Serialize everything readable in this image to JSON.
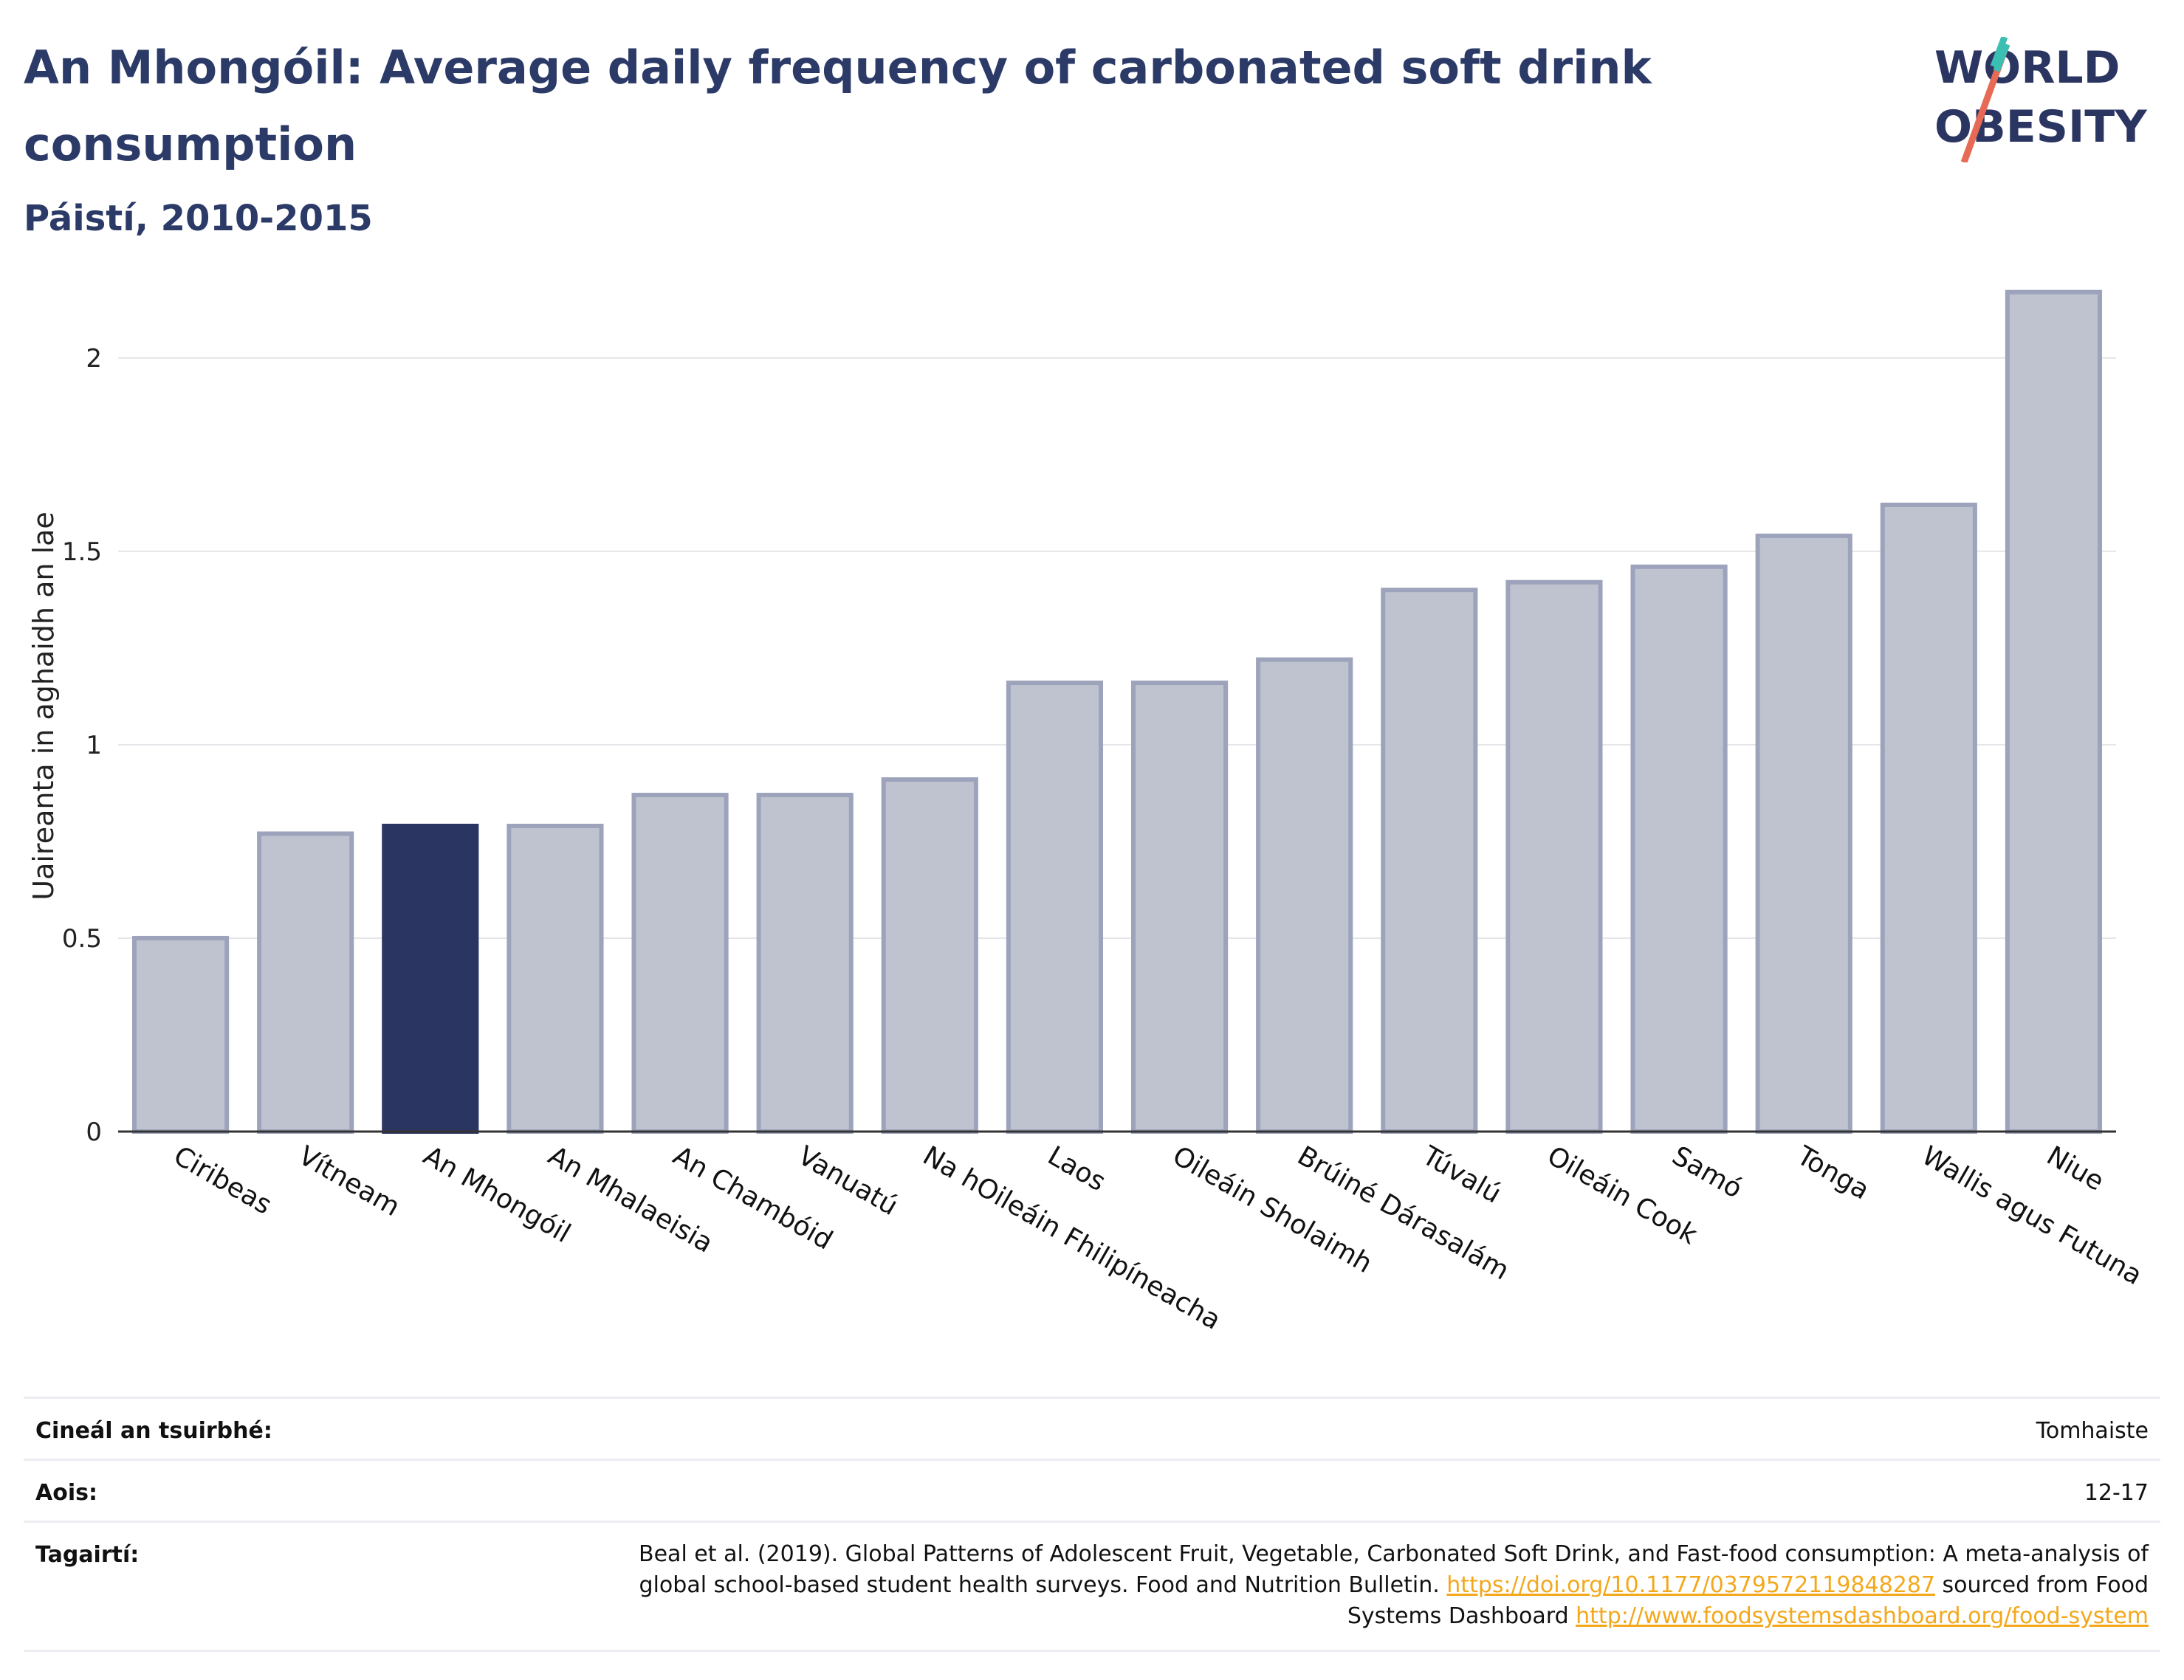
{
  "header": {
    "title": "An Mhongóil: Average daily frequency of carbonated soft drink consumption",
    "subtitle": "Páistí, 2010-2015"
  },
  "logo": {
    "line1": "WORLD",
    "line2": "OBESITY"
  },
  "colors": {
    "highlight": "#2b3561",
    "bar": "#bfc3d0",
    "bar_border": "#9ca3bb",
    "title": "#2b3a67",
    "link": "#f3a81c"
  },
  "chart_data": {
    "type": "bar",
    "ylabel": "Uaireanta in aghaidh an lae",
    "ylim": [
      0,
      2.2
    ],
    "yticks": [
      0,
      0.5,
      1,
      1.5,
      2
    ],
    "ytick_labels": [
      "0",
      "0.5",
      "1",
      "1.5",
      "2"
    ],
    "grid": true,
    "highlight_category": "An Mhongóil",
    "categories": [
      "Ciribeas",
      "Vítneam",
      "An Mhongóil",
      "An Mhalaeisia",
      "An Chambóid",
      "Vanuatú",
      "Na hOileáin Fhilipíneacha",
      "Laos",
      "Oileáin Sholaimh",
      "Brúiné Dárasalám",
      "Túvalú",
      "Oileáin Cook",
      "Samó",
      "Tonga",
      "Wallis agus Futuna",
      "Niue"
    ],
    "values": [
      0.5,
      0.77,
      0.79,
      0.79,
      0.87,
      0.87,
      0.91,
      1.16,
      1.16,
      1.22,
      1.4,
      1.42,
      1.46,
      1.54,
      1.62,
      2.17
    ]
  },
  "meta": {
    "survey_type_label": "Cineál an tsuirbhé:",
    "survey_type_value": "Tomhaiste",
    "age_label": "Aois:",
    "age_value": "12-17",
    "ref_label": "Tagairtí:",
    "ref_text_1": "Beal et al. (2019). Global Patterns of Adolescent Fruit, Vegetable, Carbonated Soft Drink, and Fast-food consumption: A meta-analysis of global school-based student health surveys. Food and Nutrition Bulletin. ",
    "ref_link_1": "https://doi.org/10.1177/0379572119848287",
    "ref_text_2": " sourced from Food Systems Dashboard ",
    "ref_link_2": "http://www.foodsystemsdashboard.org/food-system"
  }
}
